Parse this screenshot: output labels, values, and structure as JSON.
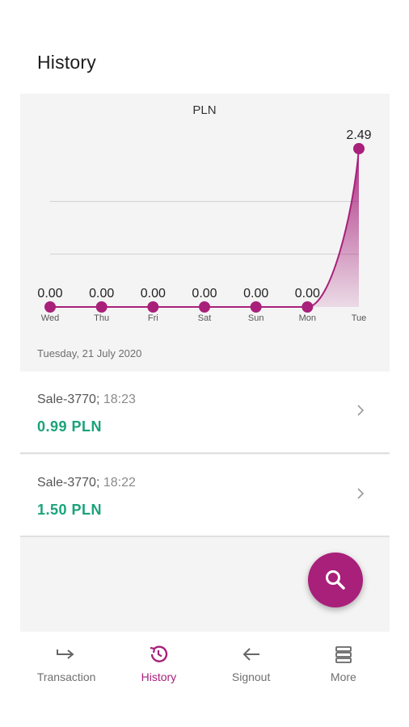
{
  "header": {
    "title": "History"
  },
  "chart_data": {
    "type": "area",
    "title": "PLN",
    "categories": [
      "Wed",
      "Thu",
      "Fri",
      "Sat",
      "Sun",
      "Mon",
      "Tue"
    ],
    "values": [
      0.0,
      0.0,
      0.0,
      0.0,
      0.0,
      0.0,
      2.49
    ],
    "data_labels": [
      "0.00",
      "0.00",
      "0.00",
      "0.00",
      "0.00",
      "0.00",
      "2.49"
    ],
    "ylim": [
      0,
      2.49
    ],
    "grid": true,
    "color": "#a8207a"
  },
  "date_label": "Tuesday, 21 July 2020",
  "transactions": [
    {
      "title": "Sale-3770;",
      "time": "18:23",
      "amount": "0.99 PLN"
    },
    {
      "title": "Sale-3770;",
      "time": "18:22",
      "amount": "1.50 PLN"
    }
  ],
  "nav": [
    {
      "label": "Transaction",
      "icon": "arrow-right-icon"
    },
    {
      "label": "History",
      "icon": "history-icon"
    },
    {
      "label": "Signout",
      "icon": "arrow-left-icon"
    },
    {
      "label": "More",
      "icon": "layers-icon"
    }
  ],
  "colors": {
    "accent": "#a8207a",
    "amount": "#1aa37a",
    "panel": "#f4f4f4"
  }
}
